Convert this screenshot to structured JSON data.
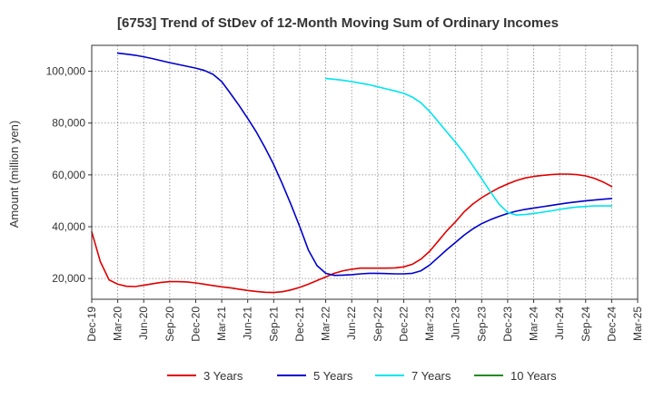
{
  "chart_data": {
    "type": "line",
    "title": "[6753]  Trend of StDev of 12-Month Moving Sum of Ordinary Incomes",
    "xlabel": "",
    "ylabel": "Amount (million yen)",
    "x_ticks": [
      "Dec-19",
      "Mar-20",
      "Jun-20",
      "Sep-20",
      "Dec-20",
      "Mar-21",
      "Jun-21",
      "Sep-21",
      "Dec-21",
      "Mar-22",
      "Jun-22",
      "Sep-22",
      "Dec-22",
      "Mar-23",
      "Jun-23",
      "Sep-23",
      "Dec-23",
      "Mar-24",
      "Jun-24",
      "Sep-24",
      "Dec-24",
      "Mar-25"
    ],
    "y_ticks": [
      20000,
      40000,
      60000,
      80000,
      100000
    ],
    "y_tick_labels": [
      "20,000",
      "40,000",
      "60,000",
      "80,000",
      "100,000"
    ],
    "ylim": [
      12000,
      110000
    ],
    "grid": true,
    "legend_position": "bottom",
    "series": [
      {
        "name": "3 Years",
        "color": "#e00000",
        "x": [
          "2019-12",
          "2020-01",
          "2020-02",
          "2020-03",
          "2020-04",
          "2020-05",
          "2020-06",
          "2020-07",
          "2020-08",
          "2020-09",
          "2020-10",
          "2020-11",
          "2020-12",
          "2021-01",
          "2021-02",
          "2021-03",
          "2021-04",
          "2021-05",
          "2021-06",
          "2021-07",
          "2021-08",
          "2021-09",
          "2021-10",
          "2021-11",
          "2021-12",
          "2022-01",
          "2022-02",
          "2022-03",
          "2022-04",
          "2022-05",
          "2022-06",
          "2022-07",
          "2022-08",
          "2022-09",
          "2022-10",
          "2022-11",
          "2022-12",
          "2023-01",
          "2023-02",
          "2023-03",
          "2023-04",
          "2023-05",
          "2023-06",
          "2023-07",
          "2023-08",
          "2023-09",
          "2023-10",
          "2023-11",
          "2023-12",
          "2024-01",
          "2024-02",
          "2024-03",
          "2024-04",
          "2024-05",
          "2024-06",
          "2024-07",
          "2024-08",
          "2024-09",
          "2024-10",
          "2024-11",
          "2024-12"
        ],
        "values": [
          38000,
          26500,
          19500,
          17800,
          17000,
          16900,
          17400,
          18000,
          18500,
          18800,
          18800,
          18700,
          18300,
          17800,
          17300,
          16800,
          16400,
          15900,
          15400,
          15000,
          14700,
          14600,
          14900,
          15600,
          16600,
          17800,
          19200,
          20600,
          22000,
          23000,
          23600,
          24000,
          24000,
          24000,
          24000,
          24100,
          24500,
          25500,
          27500,
          30500,
          34500,
          38500,
          42000,
          45800,
          48800,
          51200,
          53200,
          55000,
          56500,
          57800,
          58800,
          59400,
          59800,
          60100,
          60300,
          60300,
          60100,
          59600,
          58700,
          57300,
          55500
        ]
      },
      {
        "name": "5 Years",
        "color": "#0000cc",
        "x": [
          "2020-03",
          "2020-04",
          "2020-05",
          "2020-06",
          "2020-07",
          "2020-08",
          "2020-09",
          "2020-10",
          "2020-11",
          "2020-12",
          "2021-01",
          "2021-02",
          "2021-03",
          "2021-04",
          "2021-05",
          "2021-06",
          "2021-07",
          "2021-08",
          "2021-09",
          "2021-10",
          "2021-11",
          "2021-12",
          "2022-01",
          "2022-02",
          "2022-03",
          "2022-04",
          "2022-05",
          "2022-06",
          "2022-07",
          "2022-08",
          "2022-09",
          "2022-10",
          "2022-11",
          "2022-12",
          "2023-01",
          "2023-02",
          "2023-03",
          "2023-04",
          "2023-05",
          "2023-06",
          "2023-07",
          "2023-08",
          "2023-09",
          "2023-10",
          "2023-11",
          "2023-12",
          "2024-01",
          "2024-02",
          "2024-03",
          "2024-04",
          "2024-05",
          "2024-06",
          "2024-07",
          "2024-08",
          "2024-09",
          "2024-10",
          "2024-11",
          "2024-12"
        ],
        "values": [
          107000,
          106600,
          106200,
          105600,
          104900,
          104100,
          103300,
          102600,
          101900,
          101200,
          100300,
          98800,
          96000,
          91500,
          86800,
          81800,
          76500,
          70500,
          64000,
          56500,
          48500,
          40000,
          31000,
          25000,
          22000,
          21200,
          21300,
          21500,
          21800,
          22000,
          22000,
          21900,
          21800,
          21800,
          22000,
          23000,
          25200,
          28200,
          31200,
          34000,
          36800,
          39200,
          41200,
          42700,
          44000,
          45100,
          46000,
          46700,
          47200,
          47700,
          48200,
          48700,
          49200,
          49600,
          50000,
          50300,
          50600,
          50900
        ]
      },
      {
        "name": "7 Years",
        "color": "#00e5ee",
        "x": [
          "2022-03",
          "2022-04",
          "2022-05",
          "2022-06",
          "2022-07",
          "2022-08",
          "2022-09",
          "2022-10",
          "2022-11",
          "2022-12",
          "2023-01",
          "2023-02",
          "2023-03",
          "2023-04",
          "2023-05",
          "2023-06",
          "2023-07",
          "2023-08",
          "2023-09",
          "2023-10",
          "2023-11",
          "2023-12",
          "2024-01",
          "2024-02",
          "2024-03",
          "2024-04",
          "2024-05",
          "2024-06",
          "2024-07",
          "2024-08",
          "2024-09",
          "2024-10",
          "2024-11",
          "2024-12"
        ],
        "values": [
          97200,
          96900,
          96500,
          96000,
          95400,
          94800,
          94000,
          93200,
          92400,
          91500,
          90000,
          87800,
          84500,
          80500,
          76500,
          72500,
          68300,
          63500,
          58500,
          53500,
          48700,
          45500,
          44500,
          44700,
          45100,
          45600,
          46100,
          46700,
          47200,
          47600,
          47800,
          48000,
          48000,
          48000
        ]
      },
      {
        "name": "10 Years",
        "color": "#228b22",
        "x": [],
        "values": []
      }
    ]
  }
}
